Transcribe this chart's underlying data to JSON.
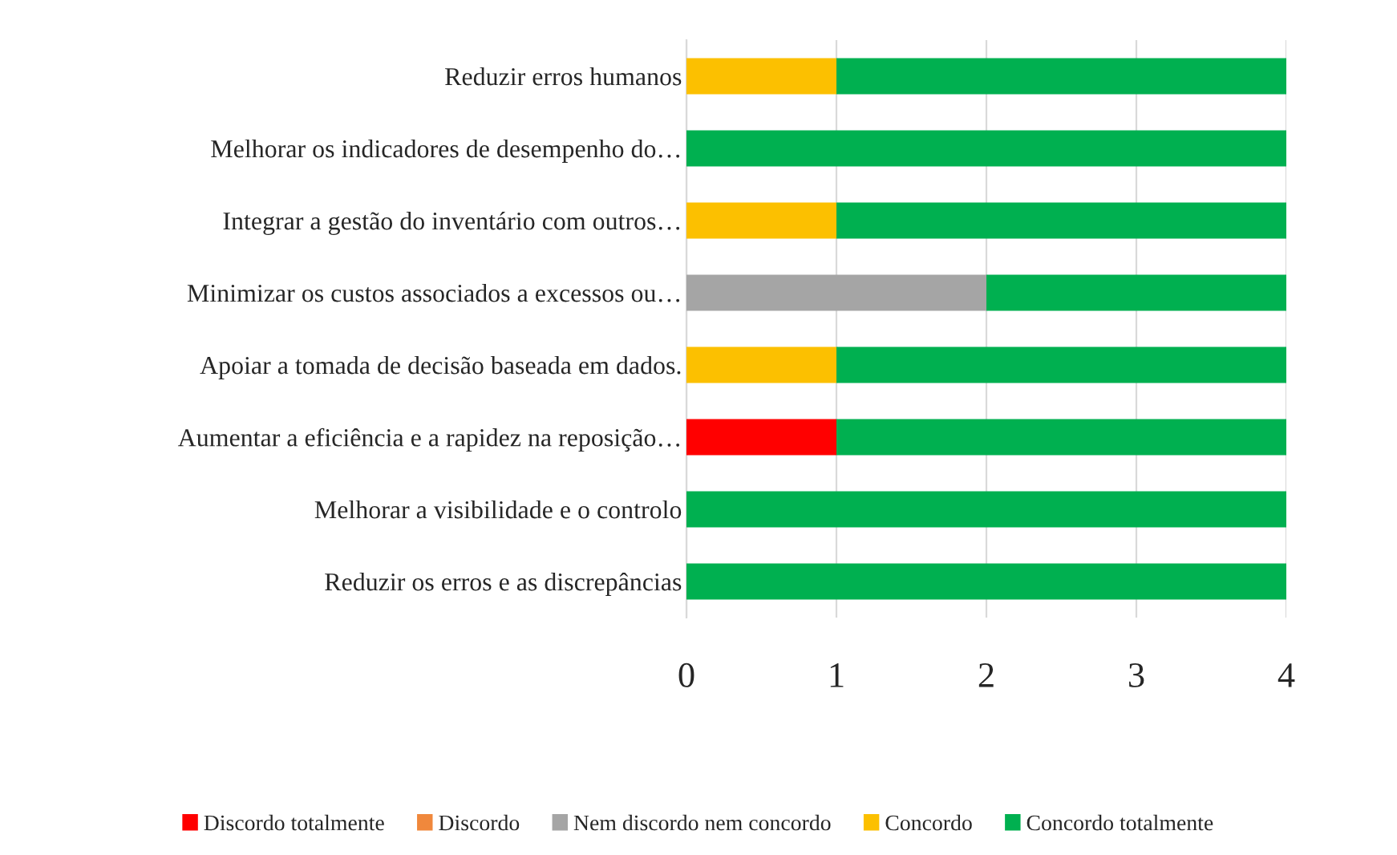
{
  "chart_data": {
    "type": "bar",
    "orientation": "horizontal",
    "stacked": true,
    "categories": [
      "Reduzir erros humanos",
      "Melhorar os indicadores de desempenho do…",
      "Integrar a gestão do inventário com outros…",
      "Minimizar os custos associados a excessos ou…",
      "Apoiar a tomada de decisão baseada em dados.",
      "Aumentar a eficiência e a rapidez na reposição…",
      "Melhorar a visibilidade e o controlo",
      "Reduzir os erros e as discrepâncias"
    ],
    "series": [
      {
        "name": "Discordo totalmente",
        "color": "#ff0000",
        "values": [
          0,
          0,
          0,
          0,
          0,
          1,
          0,
          0
        ]
      },
      {
        "name": "Discordo",
        "color": "#f0883c",
        "values": [
          0,
          0,
          0,
          0,
          0,
          0,
          0,
          0
        ]
      },
      {
        "name": "Nem discordo nem concordo",
        "color": "#a5a5a5",
        "values": [
          0,
          0,
          0,
          2,
          0,
          0,
          0,
          0
        ]
      },
      {
        "name": "Concordo",
        "color": "#fcc000",
        "values": [
          1,
          0,
          1,
          0,
          1,
          0,
          0,
          0
        ]
      },
      {
        "name": "Concordo totalmente",
        "color": "#00b050",
        "values": [
          3,
          4,
          3,
          2,
          3,
          3,
          4,
          4
        ]
      }
    ],
    "xlim": [
      0,
      4
    ],
    "xticks": [
      0,
      1,
      2,
      3,
      4
    ],
    "grid": "x",
    "legend": "bottom"
  }
}
